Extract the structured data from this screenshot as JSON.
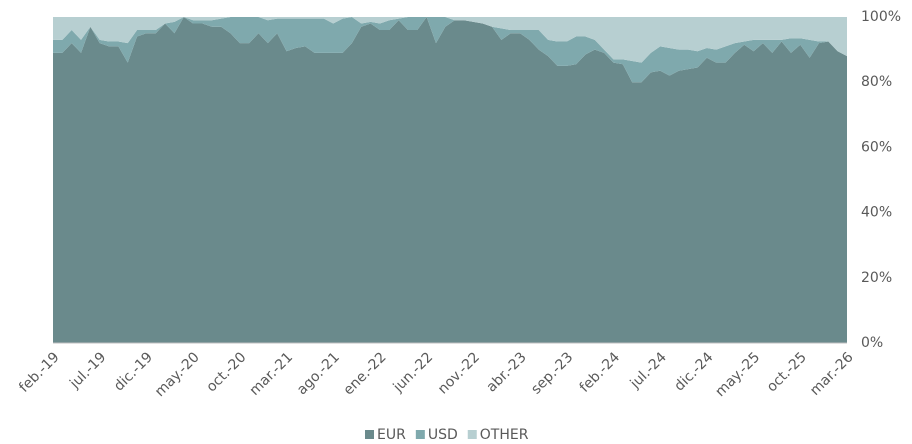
{
  "chart_data": {
    "type": "stacked_area_percent",
    "categories": [
      "feb.-19",
      null,
      null,
      null,
      null,
      "jul.-19",
      null,
      null,
      null,
      null,
      "dic.-19",
      null,
      null,
      null,
      null,
      "may.-20",
      null,
      null,
      null,
      null,
      "oct.-20",
      null,
      null,
      null,
      null,
      "mar.-21",
      null,
      null,
      null,
      null,
      "ago.-21",
      null,
      null,
      null,
      null,
      "ene.-22",
      null,
      null,
      null,
      null,
      "jun.-22",
      null,
      null,
      null,
      null,
      "nov.-22",
      null,
      null,
      null,
      null,
      "abr.-23",
      null,
      null,
      null,
      null,
      "sep.-23",
      null,
      null,
      null,
      null,
      "feb.-24",
      null,
      null,
      null,
      null,
      "jul.-24",
      null,
      null,
      null,
      null,
      "dic.-24",
      null,
      null,
      null,
      null,
      "may.-25",
      null,
      null,
      null,
      null,
      "oct.-25",
      null,
      null,
      null,
      null,
      "mar.-26"
    ],
    "series": [
      {
        "name": "EUR",
        "color": "#6a8a8c",
        "values": [
          89,
          89,
          92,
          89,
          97,
          92,
          91,
          91,
          86,
          94,
          95,
          95,
          98,
          95,
          100,
          98,
          98,
          97,
          97,
          95,
          92,
          92,
          95,
          92,
          95,
          89.5,
          90.5,
          91,
          89,
          89,
          89,
          89,
          92,
          97,
          98,
          96,
          96,
          99,
          96,
          96,
          100,
          92,
          97,
          99,
          99,
          98.5,
          98,
          97,
          93,
          95,
          95,
          93,
          90,
          88,
          85,
          85,
          85.5,
          88.5,
          90,
          89,
          86,
          85.5,
          80,
          80,
          83,
          83.5,
          82,
          83.5,
          84,
          84.5,
          87.5,
          86,
          86,
          89,
          91.5,
          89.5,
          92,
          89,
          92.5,
          89,
          91.5,
          87.5,
          92,
          92.5,
          89.5,
          88
        ]
      },
      {
        "name": "USD",
        "color": "#7fa9ad",
        "values": [
          4,
          4,
          4,
          4,
          0,
          1,
          1.5,
          1.5,
          6,
          2,
          1,
          1,
          0,
          3.5,
          0,
          1,
          1,
          2,
          2.5,
          5,
          8,
          8,
          5,
          7,
          4.5,
          10,
          9,
          8.5,
          10.5,
          10.5,
          9,
          10.5,
          8,
          1,
          0.5,
          2,
          3,
          0.5,
          4,
          4,
          0,
          8,
          3,
          0,
          0,
          0,
          0,
          0,
          3.5,
          1,
          1,
          3,
          6,
          5,
          7.5,
          7.5,
          8.5,
          5.5,
          3,
          1,
          1,
          1.5,
          6.5,
          6,
          6,
          7.5,
          8.5,
          6.5,
          6,
          5,
          3,
          4,
          5,
          3,
          1,
          3.5,
          1,
          4,
          0.5,
          4.5,
          2,
          5.5,
          0.5,
          0,
          0,
          0
        ]
      },
      {
        "name": "OTHER",
        "color": "#b7cfd1",
        "values": [
          7,
          7,
          4,
          7,
          3,
          7,
          7.5,
          7.5,
          8,
          4,
          4,
          4,
          2,
          1.5,
          0,
          1,
          1,
          1,
          0.5,
          0,
          0,
          0,
          0,
          1,
          0.5,
          0.5,
          0.5,
          0.5,
          0.5,
          0.5,
          2,
          0.5,
          0,
          2,
          1.5,
          2,
          1,
          0.5,
          0,
          0,
          0,
          0,
          0,
          1,
          1,
          1.5,
          2,
          3,
          3.5,
          4,
          4,
          4,
          4,
          7,
          7.5,
          7.5,
          6,
          6,
          7,
          10,
          13,
          13,
          13.5,
          14,
          11,
          9,
          9.5,
          10,
          10,
          10.5,
          9.5,
          10,
          9,
          8,
          7.5,
          7,
          7,
          7,
          7,
          6.5,
          6.5,
          7,
          7.5,
          7.5,
          10.5,
          12
        ]
      }
    ],
    "ylim": [
      0,
      100
    ],
    "yticks": [
      {
        "value": 0,
        "label": "0%"
      },
      {
        "value": 20,
        "label": "20%"
      },
      {
        "value": 40,
        "label": "40%"
      },
      {
        "value": 60,
        "label": "60%"
      },
      {
        "value": 80,
        "label": "80%"
      },
      {
        "value": 100,
        "label": "100%"
      }
    ],
    "legend": "bottom"
  }
}
